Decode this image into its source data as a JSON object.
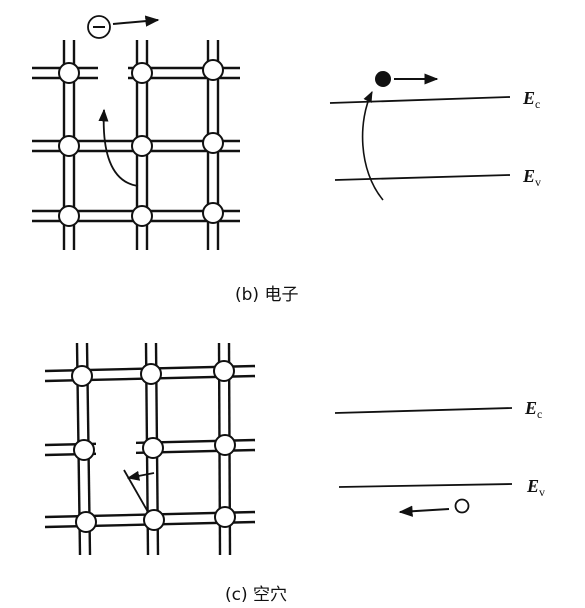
{
  "figures": [
    {
      "caption": "(b) 电子",
      "band_labels": {
        "conduction": "E",
        "conduction_sub": "c",
        "valence": "E",
        "valence_sub": "v"
      },
      "charge_marker": "⊖"
    },
    {
      "caption": "(c) 空穴",
      "band_labels": {
        "conduction": "E",
        "conduction_sub": "c",
        "valence": "E",
        "valence_sub": "v"
      }
    }
  ],
  "colors": {
    "line": "#111111",
    "atom_fill": "#ffffff"
  }
}
